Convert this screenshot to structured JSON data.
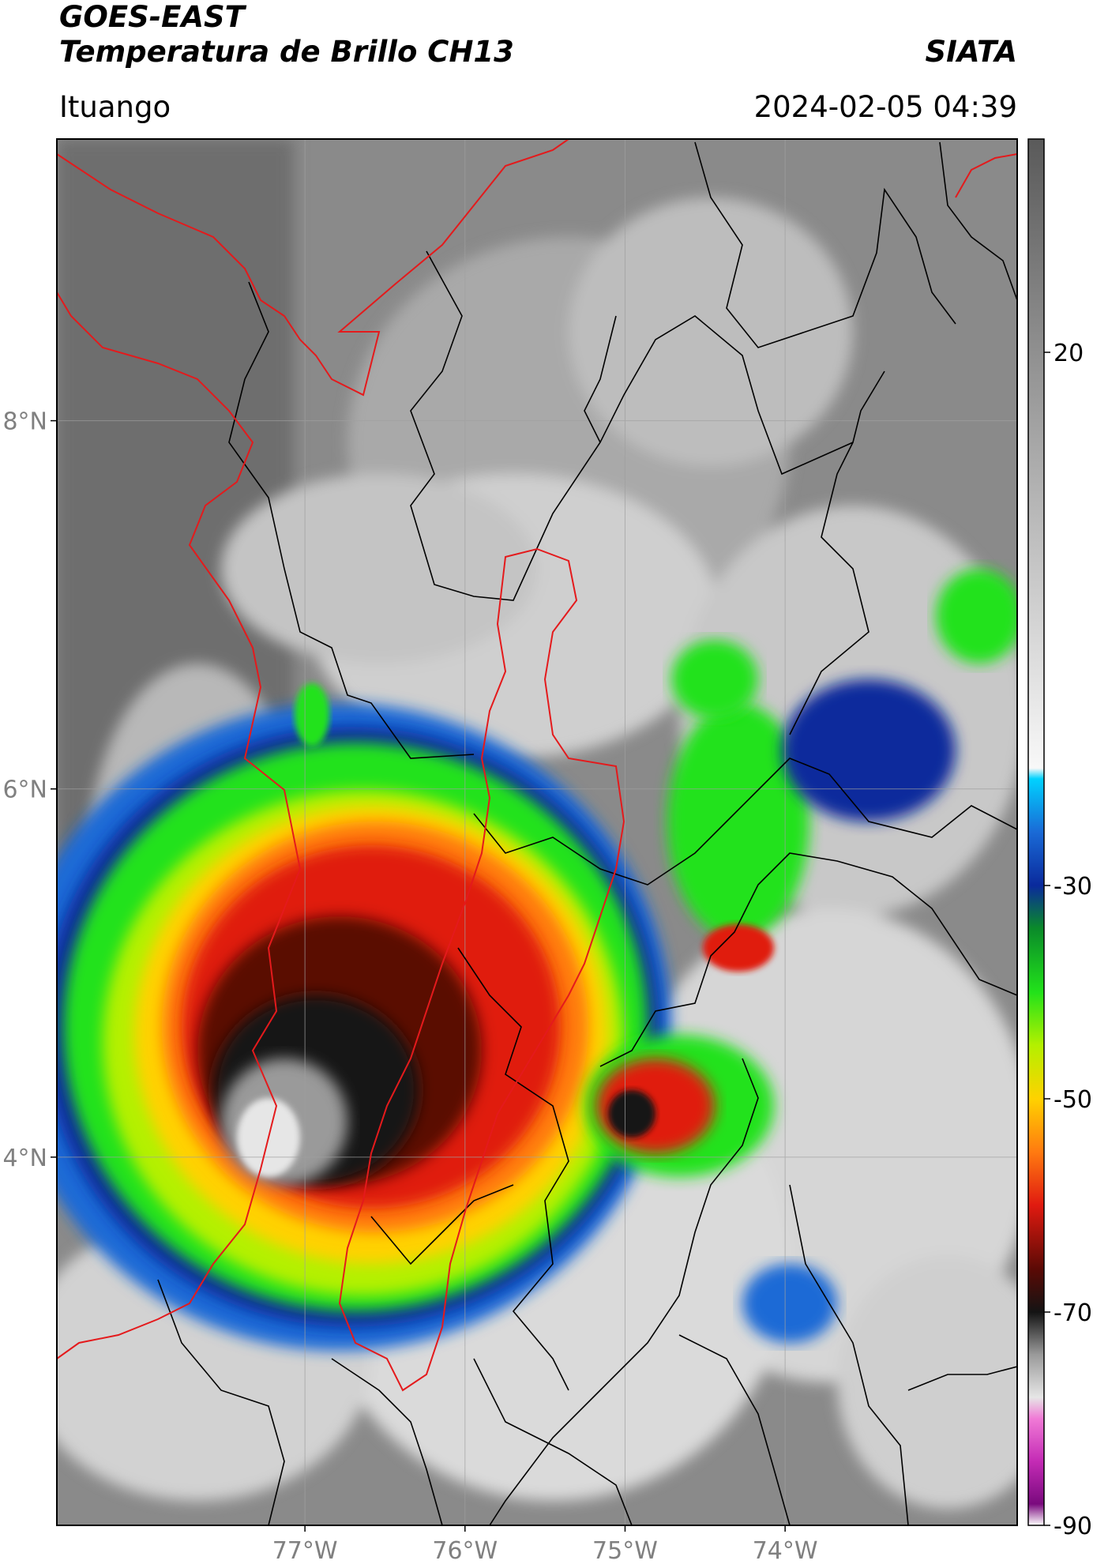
{
  "header": {
    "satellite": "GOES-EAST",
    "product": "Temperatura de Brillo CH13",
    "brand": "SIATA",
    "region": "Ituango",
    "timestamp": "2024-02-05 04:39"
  },
  "map": {
    "lat_range": [
      2.0,
      9.53
    ],
    "lon_range": [
      -78.55,
      -72.55
    ],
    "lat_ticks": [
      {
        "value": 8,
        "label": "8°N"
      },
      {
        "value": 6,
        "label": "6°N"
      },
      {
        "value": 4,
        "label": "4°N"
      }
    ],
    "lon_ticks": [
      {
        "value": -77,
        "label": "77°W"
      },
      {
        "value": -76,
        "label": "76°W"
      },
      {
        "value": -75,
        "label": "75°W"
      },
      {
        "value": -74,
        "label": "74°W"
      }
    ],
    "gridlines": true,
    "boundary_colors": {
      "coast_and_study_area": "#e41a1c",
      "departments": "#000000"
    }
  },
  "colorbar": {
    "range": [
      -90,
      40
    ],
    "ticks": [
      {
        "value": 20,
        "label": "20"
      },
      {
        "value": -30,
        "label": "-30"
      },
      {
        "value": -50,
        "label": "-50"
      },
      {
        "value": -70,
        "label": "-70"
      },
      {
        "value": -90,
        "label": "-90"
      }
    ],
    "color_stops": [
      {
        "t": -90,
        "c": "#ffffff"
      },
      {
        "t": -88,
        "c": "#7a0a7e"
      },
      {
        "t": -84,
        "c": "#c42bb5"
      },
      {
        "t": -80,
        "c": "#f07ad6"
      },
      {
        "t": -78,
        "c": "#e6e6e6"
      },
      {
        "t": -74,
        "c": "#9a9a9a"
      },
      {
        "t": -70,
        "c": "#141414"
      },
      {
        "t": -66,
        "c": "#5a0a05"
      },
      {
        "t": -60,
        "c": "#e01a10"
      },
      {
        "t": -55,
        "c": "#ff7a10"
      },
      {
        "t": -50,
        "c": "#ffd200"
      },
      {
        "t": -45,
        "c": "#b4f000"
      },
      {
        "t": -40,
        "c": "#22e21a"
      },
      {
        "t": -34,
        "c": "#0a8a2a"
      },
      {
        "t": -30,
        "c": "#0a2a9c"
      },
      {
        "t": -25,
        "c": "#1a6ad6"
      },
      {
        "t": -20,
        "c": "#00d2ff"
      },
      {
        "t": -19,
        "c": "#f8f8f8"
      },
      {
        "t": 5,
        "c": "#b8b8b8"
      },
      {
        "t": 40,
        "c": "#5a5a5a"
      }
    ]
  }
}
